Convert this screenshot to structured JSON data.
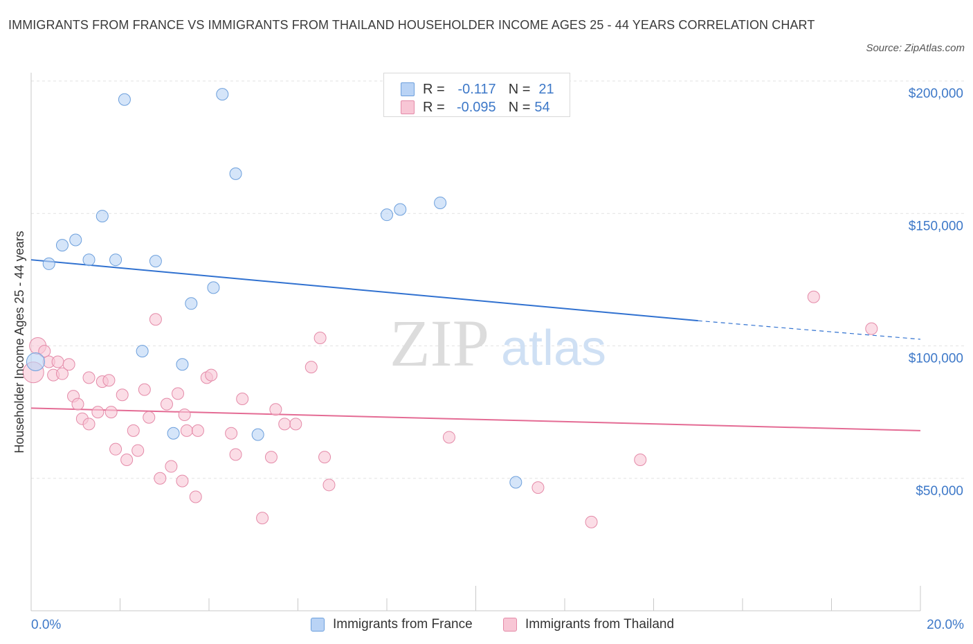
{
  "title": "IMMIGRANTS FROM FRANCE VS IMMIGRANTS FROM THAILAND HOUSEHOLDER INCOME AGES 25 - 44 YEARS CORRELATION CHART",
  "source": "Source: ZipAtlas.com",
  "watermark": {
    "zip": "ZIP",
    "atlas": "atlas"
  },
  "legend_top": {
    "france": {
      "r_label": "R =",
      "r_value": "-0.117",
      "n_label": "N =",
      "n_value": "21"
    },
    "thailand": {
      "r_label": "R =",
      "r_value": "-0.095",
      "n_label": "N =",
      "n_value": "54"
    }
  },
  "legend_bottom": {
    "france": "Immigrants from France",
    "thailand": "Immigrants from Thailand"
  },
  "colors": {
    "france_fill": "#b9d3f5",
    "france_stroke": "#6c9fdc",
    "france_line": "#3071d0",
    "thailand_fill": "#f8c6d5",
    "thailand_stroke": "#e48aa8",
    "thailand_line": "#e46b94",
    "axis_value": "#3d78c8",
    "grid": "#e2e2e2"
  },
  "chart_data": {
    "type": "scatter",
    "title": "IMMIGRANTS FROM FRANCE VS IMMIGRANTS FROM THAILAND HOUSEHOLDER INCOME AGES 25 - 44 YEARS CORRELATION CHART",
    "xlabel": "",
    "ylabel": "Householder Income Ages 25 - 44 years",
    "xlim": [
      0,
      20
    ],
    "ylim": [
      0,
      200000
    ],
    "x_tick_labels": [
      "0.0%",
      "20.0%"
    ],
    "y_ticks": [
      50000,
      100000,
      150000,
      200000
    ],
    "y_tick_labels": [
      "$50,000",
      "$100,000",
      "$150,000",
      "$200,000"
    ],
    "grid": true,
    "legend_position": "top-center",
    "series": [
      {
        "name": "Immigrants from France",
        "points": [
          [
            0.1,
            94000
          ],
          [
            0.4,
            131000
          ],
          [
            0.7,
            138000
          ],
          [
            1.0,
            140000
          ],
          [
            1.3,
            132500
          ],
          [
            1.6,
            149000
          ],
          [
            1.9,
            132500
          ],
          [
            2.1,
            193000
          ],
          [
            2.5,
            98000
          ],
          [
            2.8,
            132000
          ],
          [
            3.2,
            67000
          ],
          [
            3.4,
            93000
          ],
          [
            3.6,
            116000
          ],
          [
            4.1,
            122000
          ],
          [
            4.3,
            195000
          ],
          [
            4.6,
            165000
          ],
          [
            5.1,
            66500
          ],
          [
            8.0,
            149500
          ],
          [
            8.3,
            151500
          ],
          [
            9.2,
            154000
          ],
          [
            10.9,
            48500
          ]
        ],
        "trend": {
          "x": [
            0,
            15
          ],
          "y": [
            132500,
            109500
          ],
          "dashed_to": [
            20,
            102500
          ]
        }
      },
      {
        "name": "Immigrants from Thailand",
        "points": [
          [
            0.05,
            90000
          ],
          [
            0.15,
            100000
          ],
          [
            0.3,
            98000
          ],
          [
            0.4,
            94000
          ],
          [
            0.5,
            89000
          ],
          [
            0.6,
            94000
          ],
          [
            0.7,
            89500
          ],
          [
            0.85,
            93000
          ],
          [
            0.95,
            81000
          ],
          [
            1.05,
            78000
          ],
          [
            1.15,
            72500
          ],
          [
            1.3,
            70500
          ],
          [
            1.3,
            88000
          ],
          [
            1.5,
            75000
          ],
          [
            1.6,
            86500
          ],
          [
            1.75,
            87000
          ],
          [
            1.8,
            75000
          ],
          [
            1.9,
            61000
          ],
          [
            2.05,
            81500
          ],
          [
            2.15,
            57000
          ],
          [
            2.3,
            68000
          ],
          [
            2.4,
            60500
          ],
          [
            2.55,
            83500
          ],
          [
            2.65,
            73000
          ],
          [
            2.8,
            110000
          ],
          [
            2.9,
            50000
          ],
          [
            3.05,
            78000
          ],
          [
            3.15,
            54500
          ],
          [
            3.3,
            82000
          ],
          [
            3.4,
            49000
          ],
          [
            3.45,
            74000
          ],
          [
            3.5,
            68000
          ],
          [
            3.7,
            43000
          ],
          [
            3.75,
            68000
          ],
          [
            3.95,
            88000
          ],
          [
            4.05,
            89000
          ],
          [
            4.5,
            67000
          ],
          [
            4.6,
            59000
          ],
          [
            4.75,
            80000
          ],
          [
            5.2,
            35000
          ],
          [
            5.4,
            58000
          ],
          [
            5.5,
            76000
          ],
          [
            5.7,
            70500
          ],
          [
            5.95,
            70500
          ],
          [
            6.3,
            92000
          ],
          [
            6.5,
            103000
          ],
          [
            6.6,
            58000
          ],
          [
            6.7,
            47500
          ],
          [
            9.4,
            65500
          ],
          [
            11.4,
            46500
          ],
          [
            12.6,
            33500
          ],
          [
            13.7,
            57000
          ],
          [
            17.6,
            118500
          ],
          [
            18.9,
            106500
          ]
        ],
        "trend": {
          "x": [
            0,
            20
          ],
          "y": [
            76500,
            68000
          ]
        }
      }
    ]
  }
}
